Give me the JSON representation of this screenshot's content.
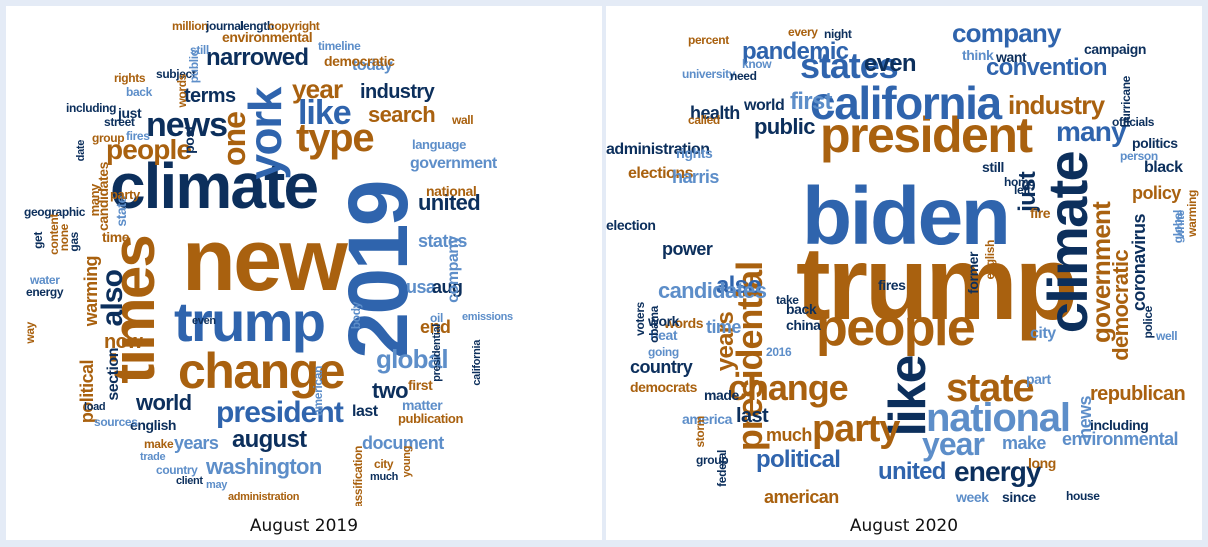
{
  "colors": {
    "dark_navy": "#0c2f5c",
    "blue": "#2f64ad",
    "light_blue": "#5d8ec9",
    "orange": "#a9610f",
    "light_orange": "#c7852e"
  },
  "clouds": [
    {
      "caption": "August 2019",
      "words": [
        {
          "text": "new",
          "color": "orange"
        },
        {
          "text": "climate",
          "color": "dark_navy"
        },
        {
          "text": "2019",
          "color": "blue"
        },
        {
          "text": "trump",
          "color": "blue"
        },
        {
          "text": "times",
          "color": "orange"
        },
        {
          "text": "change",
          "color": "orange"
        },
        {
          "text": "york",
          "color": "blue"
        },
        {
          "text": "type",
          "color": "orange"
        },
        {
          "text": "one",
          "color": "orange"
        },
        {
          "text": "news",
          "color": "dark_navy"
        },
        {
          "text": "like",
          "color": "blue"
        },
        {
          "text": "people",
          "color": "orange"
        },
        {
          "text": "president",
          "color": "blue"
        },
        {
          "text": "narrowed",
          "color": "dark_navy"
        },
        {
          "text": "year",
          "color": "orange"
        },
        {
          "text": "terms",
          "color": "dark_navy"
        },
        {
          "text": "search",
          "color": "orange"
        },
        {
          "text": "global",
          "color": "light_blue"
        },
        {
          "text": "also",
          "color": "dark_navy"
        },
        {
          "text": "august",
          "color": "dark_navy"
        },
        {
          "text": "washington",
          "color": "light_blue"
        },
        {
          "text": "world",
          "color": "dark_navy"
        },
        {
          "text": "united",
          "color": "dark_navy"
        },
        {
          "text": "industry",
          "color": "dark_navy"
        },
        {
          "text": "government",
          "color": "light_blue"
        },
        {
          "text": "years",
          "color": "light_blue"
        },
        {
          "text": "document",
          "color": "light_blue"
        },
        {
          "text": "two",
          "color": "dark_navy"
        },
        {
          "text": "states",
          "color": "light_blue"
        },
        {
          "text": "usa",
          "color": "light_blue"
        },
        {
          "text": "aug",
          "color": "dark_navy"
        },
        {
          "text": "warming",
          "color": "orange"
        },
        {
          "text": "now",
          "color": "orange"
        },
        {
          "text": "section",
          "color": "dark_navy"
        },
        {
          "text": "political",
          "color": "orange"
        },
        {
          "text": "company",
          "color": "light_blue"
        },
        {
          "text": "end",
          "color": "orange"
        },
        {
          "text": "today",
          "color": "light_blue"
        },
        {
          "text": "environmental",
          "color": "orange"
        },
        {
          "text": "democratic",
          "color": "orange"
        },
        {
          "text": "language",
          "color": "light_blue"
        },
        {
          "text": "national",
          "color": "orange"
        },
        {
          "text": "last",
          "color": "dark_navy"
        },
        {
          "text": "matter",
          "color": "light_blue"
        },
        {
          "text": "first",
          "color": "orange"
        },
        {
          "text": "publication",
          "color": "orange"
        },
        {
          "text": "english",
          "color": "dark_navy"
        },
        {
          "text": "sources",
          "color": "light_blue"
        },
        {
          "text": "load",
          "color": "dark_navy"
        },
        {
          "text": "time",
          "color": "orange"
        },
        {
          "text": "candidates",
          "color": "orange"
        },
        {
          "text": "state",
          "color": "light_blue"
        },
        {
          "text": "party",
          "color": "orange"
        },
        {
          "text": "just",
          "color": "dark_navy"
        },
        {
          "text": "post",
          "color": "dark_navy"
        },
        {
          "text": "million",
          "color": "orange"
        },
        {
          "text": "journal",
          "color": "dark_navy"
        },
        {
          "text": "length",
          "color": "dark_navy"
        },
        {
          "text": "copyright",
          "color": "orange"
        },
        {
          "text": "timeline",
          "color": "light_blue"
        },
        {
          "text": "still",
          "color": "light_blue"
        },
        {
          "text": "subject",
          "color": "dark_navy"
        },
        {
          "text": "rights",
          "color": "orange"
        },
        {
          "text": "back",
          "color": "light_blue"
        },
        {
          "text": "public",
          "color": "light_blue"
        },
        {
          "text": "words",
          "color": "orange"
        },
        {
          "text": "including",
          "color": "dark_navy"
        },
        {
          "text": "street",
          "color": "dark_navy"
        },
        {
          "text": "group",
          "color": "orange"
        },
        {
          "text": "fires",
          "color": "light_blue"
        },
        {
          "text": "date",
          "color": "dark_navy"
        },
        {
          "text": "many",
          "color": "orange"
        },
        {
          "text": "wall",
          "color": "orange"
        },
        {
          "text": "geographic",
          "color": "dark_navy"
        },
        {
          "text": "content",
          "color": "orange"
        },
        {
          "text": "none",
          "color": "orange"
        },
        {
          "text": "get",
          "color": "dark_navy"
        },
        {
          "text": "gas",
          "color": "dark_navy"
        },
        {
          "text": "water",
          "color": "light_blue"
        },
        {
          "text": "energy",
          "color": "dark_navy"
        },
        {
          "text": "way",
          "color": "orange"
        },
        {
          "text": "even",
          "color": "dark_navy"
        },
        {
          "text": "oil",
          "color": "light_blue"
        },
        {
          "text": "american",
          "color": "light_blue"
        },
        {
          "text": "body",
          "color": "light_blue"
        },
        {
          "text": "presidential",
          "color": "dark_navy"
        },
        {
          "text": "emissions",
          "color": "light_blue"
        },
        {
          "text": "california",
          "color": "dark_navy"
        },
        {
          "text": "trade",
          "color": "light_blue"
        },
        {
          "text": "make",
          "color": "orange"
        },
        {
          "text": "country",
          "color": "light_blue"
        },
        {
          "text": "client",
          "color": "dark_navy"
        },
        {
          "text": "may",
          "color": "light_blue"
        },
        {
          "text": "administration",
          "color": "orange"
        },
        {
          "text": "classification",
          "color": "orange"
        },
        {
          "text": "city",
          "color": "orange"
        },
        {
          "text": "much",
          "color": "dark_navy"
        },
        {
          "text": "young",
          "color": "orange"
        },
        {
          "text": "abstracts",
          "color": "light_blue"
        }
      ]
    },
    {
      "caption": "August 2020",
      "words": [
        {
          "text": "trump",
          "color": "orange"
        },
        {
          "text": "biden",
          "color": "blue"
        },
        {
          "text": "president",
          "color": "orange"
        },
        {
          "text": "california",
          "color": "blue"
        },
        {
          "text": "climate",
          "color": "dark_navy"
        },
        {
          "text": "people",
          "color": "orange"
        },
        {
          "text": "like",
          "color": "dark_navy"
        },
        {
          "text": "state",
          "color": "orange"
        },
        {
          "text": "change",
          "color": "orange"
        },
        {
          "text": "national",
          "color": "light_blue"
        },
        {
          "text": "party",
          "color": "orange"
        },
        {
          "text": "year",
          "color": "light_blue"
        },
        {
          "text": "presidential",
          "color": "orange"
        },
        {
          "text": "states",
          "color": "blue"
        },
        {
          "text": "company",
          "color": "blue"
        },
        {
          "text": "convention",
          "color": "blue"
        },
        {
          "text": "industry",
          "color": "orange"
        },
        {
          "text": "many",
          "color": "blue"
        },
        {
          "text": "government",
          "color": "orange"
        },
        {
          "text": "democratic",
          "color": "orange"
        },
        {
          "text": "also",
          "color": "blue"
        },
        {
          "text": "years",
          "color": "orange"
        },
        {
          "text": "political",
          "color": "blue"
        },
        {
          "text": "united",
          "color": "blue"
        },
        {
          "text": "energy",
          "color": "dark_navy"
        },
        {
          "text": "pandemic",
          "color": "blue"
        },
        {
          "text": "even",
          "color": "dark_navy"
        },
        {
          "text": "first",
          "color": "light_blue"
        },
        {
          "text": "public",
          "color": "dark_navy"
        },
        {
          "text": "health",
          "color": "dark_navy"
        },
        {
          "text": "world",
          "color": "dark_navy"
        },
        {
          "text": "just",
          "color": "dark_navy"
        },
        {
          "text": "coronavirus",
          "color": "dark_navy"
        },
        {
          "text": "policy",
          "color": "orange"
        },
        {
          "text": "black",
          "color": "dark_navy"
        },
        {
          "text": "republican",
          "color": "orange"
        },
        {
          "text": "environmental",
          "color": "light_blue"
        },
        {
          "text": "make",
          "color": "light_blue"
        },
        {
          "text": "american",
          "color": "orange"
        },
        {
          "text": "much",
          "color": "orange"
        },
        {
          "text": "last",
          "color": "dark_navy"
        },
        {
          "text": "news",
          "color": "light_blue"
        },
        {
          "text": "candidates",
          "color": "light_blue"
        },
        {
          "text": "time",
          "color": "light_blue"
        },
        {
          "text": "power",
          "color": "dark_navy"
        },
        {
          "text": "country",
          "color": "dark_navy"
        },
        {
          "text": "words",
          "color": "orange"
        },
        {
          "text": "elections",
          "color": "orange"
        },
        {
          "text": "harris",
          "color": "light_blue"
        },
        {
          "text": "administration",
          "color": "dark_navy"
        },
        {
          "text": "rights",
          "color": "light_blue"
        },
        {
          "text": "fire",
          "color": "orange"
        },
        {
          "text": "including",
          "color": "dark_navy"
        },
        {
          "text": "long",
          "color": "orange"
        },
        {
          "text": "week",
          "color": "light_blue"
        },
        {
          "text": "since",
          "color": "dark_navy"
        },
        {
          "text": "house",
          "color": "dark_navy"
        },
        {
          "text": "city",
          "color": "light_blue"
        },
        {
          "text": "part",
          "color": "light_blue"
        },
        {
          "text": "made",
          "color": "dark_navy"
        },
        {
          "text": "america",
          "color": "light_blue"
        },
        {
          "text": "democrats",
          "color": "orange"
        },
        {
          "text": "work",
          "color": "dark_navy"
        },
        {
          "text": "heat",
          "color": "light_blue"
        },
        {
          "text": "going",
          "color": "light_blue"
        },
        {
          "text": "2016",
          "color": "light_blue"
        },
        {
          "text": "china",
          "color": "dark_navy"
        },
        {
          "text": "back",
          "color": "dark_navy"
        },
        {
          "text": "take",
          "color": "dark_navy"
        },
        {
          "text": "fires",
          "color": "dark_navy"
        },
        {
          "text": "former",
          "color": "dark_navy"
        },
        {
          "text": "english",
          "color": "orange"
        },
        {
          "text": "still",
          "color": "dark_navy"
        },
        {
          "text": "home",
          "color": "dark_navy"
        },
        {
          "text": "left",
          "color": "dark_navy"
        },
        {
          "text": "campaign",
          "color": "dark_navy"
        },
        {
          "text": "percent",
          "color": "orange"
        },
        {
          "text": "every",
          "color": "orange"
        },
        {
          "text": "night",
          "color": "dark_navy"
        },
        {
          "text": "think",
          "color": "light_blue"
        },
        {
          "text": "want",
          "color": "dark_navy"
        },
        {
          "text": "university",
          "color": "light_blue"
        },
        {
          "text": "know",
          "color": "light_blue"
        },
        {
          "text": "need",
          "color": "dark_navy"
        },
        {
          "text": "called",
          "color": "orange"
        },
        {
          "text": "officials",
          "color": "dark_navy"
        },
        {
          "text": "hurricane",
          "color": "dark_navy"
        },
        {
          "text": "politics",
          "color": "dark_navy"
        },
        {
          "text": "person",
          "color": "light_blue"
        },
        {
          "text": "white",
          "color": "light_blue"
        },
        {
          "text": "global",
          "color": "light_blue"
        },
        {
          "text": "warming",
          "color": "orange"
        },
        {
          "text": "police",
          "color": "dark_navy"
        },
        {
          "text": "well",
          "color": "light_blue"
        },
        {
          "text": "voters",
          "color": "dark_navy"
        },
        {
          "text": "obama",
          "color": "dark_navy"
        },
        {
          "text": "election",
          "color": "dark_navy"
        },
        {
          "text": "federal",
          "color": "dark_navy"
        },
        {
          "text": "storm",
          "color": "orange"
        },
        {
          "text": "group",
          "color": "dark_navy"
        }
      ]
    }
  ]
}
